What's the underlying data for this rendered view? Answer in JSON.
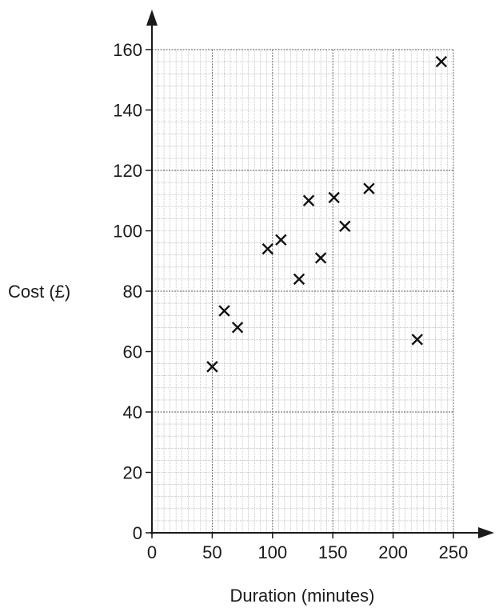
{
  "chart_data": {
    "type": "scatter",
    "xlabel": "Duration (minutes)",
    "ylabel": "Cost (£)",
    "xlim": [
      0,
      250
    ],
    "ylim": [
      0,
      160
    ],
    "x_ticks": [
      0,
      50,
      100,
      150,
      200,
      250
    ],
    "y_ticks": [
      0,
      20,
      40,
      60,
      80,
      100,
      120,
      140,
      160
    ],
    "grid": "on (major every 50 min / 40 £, minor every 5 min / 4 £)",
    "marker": "cross",
    "points": [
      {
        "x": 50,
        "y": 55
      },
      {
        "x": 60,
        "y": 73.5
      },
      {
        "x": 71,
        "y": 68
      },
      {
        "x": 96,
        "y": 94
      },
      {
        "x": 107,
        "y": 97
      },
      {
        "x": 122,
        "y": 84
      },
      {
        "x": 130,
        "y": 110
      },
      {
        "x": 140,
        "y": 91
      },
      {
        "x": 151,
        "y": 111
      },
      {
        "x": 160,
        "y": 101.5
      },
      {
        "x": 180,
        "y": 114
      },
      {
        "x": 220,
        "y": 64
      },
      {
        "x": 240,
        "y": 156
      }
    ]
  }
}
